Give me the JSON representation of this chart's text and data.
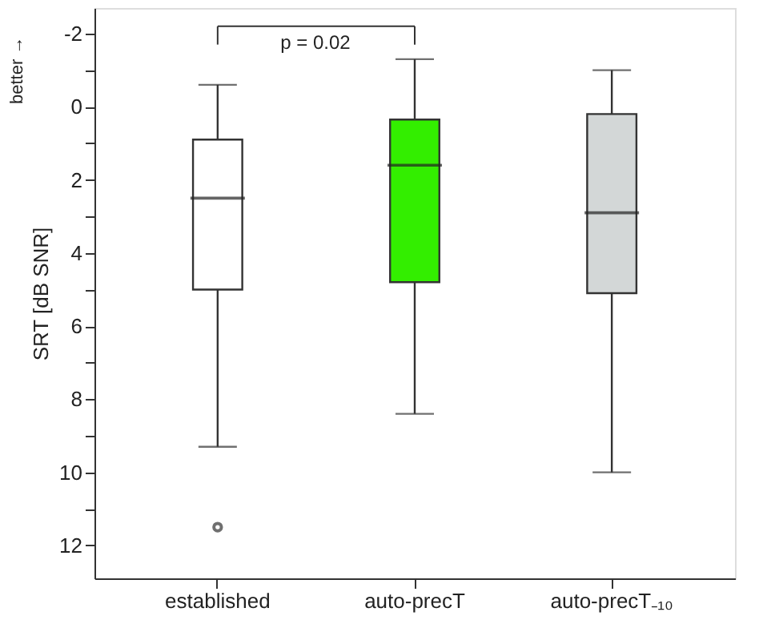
{
  "chart_data": {
    "type": "box",
    "ylabel": "SRT [dB SNR]",
    "categories": [
      "established",
      "auto-precT",
      "auto-precT₋₁₀"
    ],
    "boxes": [
      {
        "low": -0.6,
        "q1": 0.9,
        "median": 2.5,
        "q3": 5.0,
        "high": 9.3,
        "outliers": [
          11.5
        ]
      },
      {
        "low": -1.3,
        "q1": 0.35,
        "median": 1.6,
        "q3": 4.8,
        "high": 8.4
      },
      {
        "low": -1.0,
        "q1": 0.2,
        "median": 2.9,
        "q3": 5.1,
        "high": 10.0
      }
    ],
    "colors": [
      "#ffffff",
      "#33ee00",
      "#d3d7d7"
    ],
    "ylim": [
      12.9,
      -2.7
    ],
    "yticks": [
      {
        "value": -2,
        "label": "-2"
      },
      {
        "value": -1,
        "label": null
      },
      0,
      {
        "value": 1,
        "label": null
      },
      2,
      {
        "value": 3,
        "label": null
      },
      4,
      {
        "value": 5,
        "label": null
      },
      6,
      {
        "value": 7,
        "label": null
      },
      8,
      {
        "value": 9,
        "label": null
      },
      10,
      {
        "value": 11,
        "label": null
      },
      12
    ],
    "annotations": [
      "p = 0.02",
      "better →"
    ],
    "grid": false
  }
}
